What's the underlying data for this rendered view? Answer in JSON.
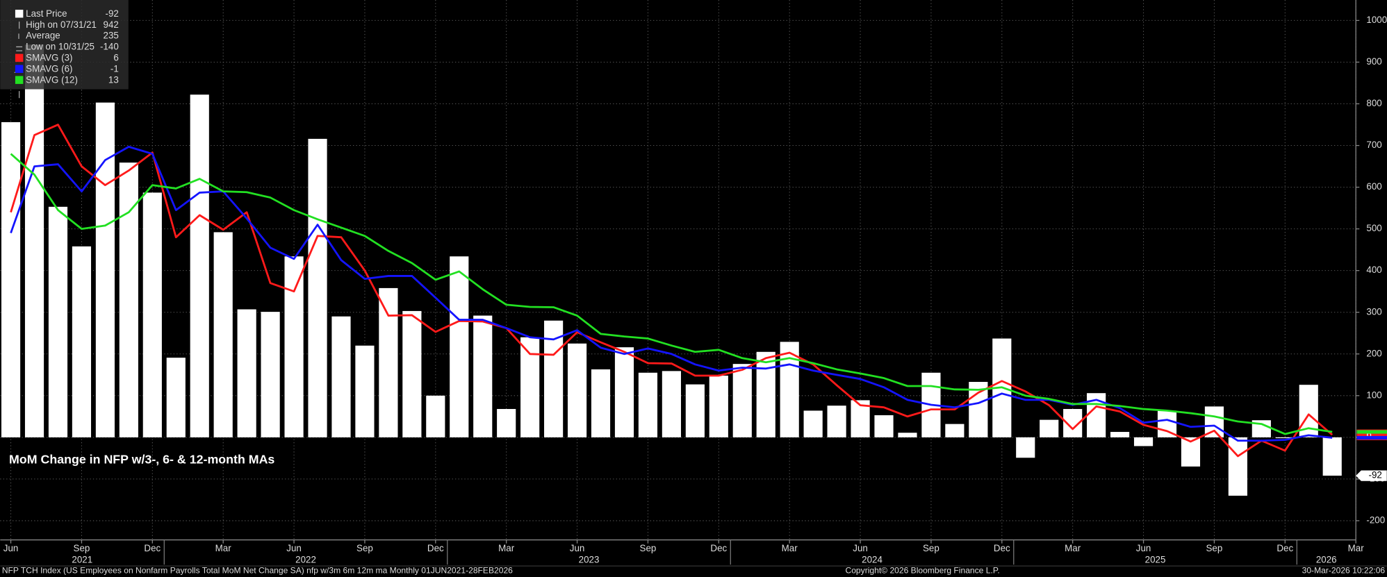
{
  "chart_data": {
    "type": "bar",
    "title": "MoM Change in NFP w/3-, 6- & 12-month MAs",
    "footer_left": "NFP TCH Index (US Employees on Nonfarm Payrolls Total MoM Net Change SA) nfp w/3m 6m 12m ma Monthly 01JUN2021-28FEB2026",
    "footer_center": "Copyright© 2026 Bloomberg Finance L.P.",
    "footer_right": "30-Mar-2026 10:22:06",
    "x": [
      "2021-06",
      "2021-07",
      "2021-08",
      "2021-09",
      "2021-10",
      "2021-11",
      "2021-12",
      "2022-01",
      "2022-02",
      "2022-03",
      "2022-04",
      "2022-05",
      "2022-06",
      "2022-07",
      "2022-08",
      "2022-09",
      "2022-10",
      "2022-11",
      "2022-12",
      "2023-01",
      "2023-02",
      "2023-03",
      "2023-04",
      "2023-05",
      "2023-06",
      "2023-07",
      "2023-08",
      "2023-09",
      "2023-10",
      "2023-11",
      "2023-12",
      "2024-01",
      "2024-02",
      "2024-03",
      "2024-04",
      "2024-05",
      "2024-06",
      "2024-07",
      "2024-08",
      "2024-09",
      "2024-10",
      "2024-11",
      "2024-12",
      "2025-01",
      "2025-02",
      "2025-03",
      "2025-04",
      "2025-05",
      "2025-06",
      "2025-07",
      "2025-08",
      "2025-09",
      "2025-10",
      "2025-11",
      "2025-12",
      "2026-01",
      "2026-02"
    ],
    "xticks": [
      {
        "value": "2021-06",
        "label": "Jun"
      },
      {
        "value": "2021-09",
        "label": "Sep"
      },
      {
        "value": "2021-12",
        "label": "Dec"
      },
      {
        "value": "2022-03",
        "label": "Mar"
      },
      {
        "value": "2022-06",
        "label": "Jun"
      },
      {
        "value": "2022-09",
        "label": "Sep"
      },
      {
        "value": "2022-12",
        "label": "Dec"
      },
      {
        "value": "2023-03",
        "label": "Mar"
      },
      {
        "value": "2023-06",
        "label": "Jun"
      },
      {
        "value": "2023-09",
        "label": "Sep"
      },
      {
        "value": "2023-12",
        "label": "Dec"
      },
      {
        "value": "2024-03",
        "label": "Mar"
      },
      {
        "value": "2024-06",
        "label": "Jun"
      },
      {
        "value": "2024-09",
        "label": "Sep"
      },
      {
        "value": "2024-12",
        "label": "Dec"
      },
      {
        "value": "2025-03",
        "label": "Mar"
      },
      {
        "value": "2025-06",
        "label": "Jun"
      },
      {
        "value": "2025-09",
        "label": "Sep"
      },
      {
        "value": "2025-12",
        "label": "Dec"
      },
      {
        "value": "2026-03",
        "label": "Mar"
      }
    ],
    "year_labels": [
      2021,
      2022,
      2023,
      2024,
      2025,
      2026
    ],
    "ylim": [
      -246,
      1049
    ],
    "yticks": [
      -200,
      -100,
      0,
      100,
      200,
      300,
      400,
      500,
      600,
      700,
      800,
      900,
      1000
    ],
    "grid": true,
    "series": [
      {
        "name": "Last Price",
        "type": "bar",
        "color": "#ffffff",
        "values": [
          756,
          942,
          553,
          458,
          803,
          659,
          587,
          191,
          822,
          492,
          307,
          301,
          434,
          716,
          290,
          220,
          358,
          303,
          100,
          434,
          292,
          68,
          240,
          280,
          225,
          163,
          216,
          155,
          159,
          127,
          148,
          176,
          205,
          229,
          64,
          76,
          89,
          53,
          11,
          155,
          32,
          133,
          237,
          -49,
          42,
          68,
          106,
          13,
          -21,
          64,
          -70,
          74,
          -140,
          41,
          -2,
          126,
          -92
        ]
      },
      {
        "name": "SMAVG (3)",
        "type": "line",
        "color": "#ff1a1a",
        "values": [
          540,
          725,
          750,
          650,
          605,
          640,
          683,
          480,
          533,
          498,
          540,
          370,
          350,
          483,
          480,
          400,
          292,
          293,
          253,
          279,
          278,
          262,
          200,
          198,
          252,
          228,
          205,
          178,
          177,
          148,
          148,
          162,
          190,
          203,
          175,
          125,
          77,
          72,
          50,
          67,
          67,
          107,
          135,
          110,
          77,
          20,
          74,
          62,
          30,
          15,
          -10,
          16,
          -45,
          -8,
          -32,
          55,
          6
        ]
      },
      {
        "name": "SMAVG (6)",
        "type": "line",
        "color": "#1414ff",
        "values": [
          490,
          650,
          655,
          590,
          665,
          697,
          680,
          545,
          587,
          590,
          525,
          455,
          428,
          510,
          425,
          380,
          387,
          387,
          335,
          282,
          282,
          262,
          240,
          235,
          257,
          215,
          200,
          213,
          200,
          175,
          160,
          167,
          165,
          175,
          160,
          150,
          140,
          120,
          90,
          78,
          72,
          82,
          105,
          90,
          90,
          78,
          90,
          70,
          35,
          42,
          25,
          28,
          -8,
          -8,
          -6,
          5,
          -1
        ]
      },
      {
        "name": "SMAVG (12)",
        "type": "line",
        "color": "#22e022",
        "values": [
          680,
          630,
          545,
          500,
          508,
          540,
          605,
          597,
          620,
          590,
          588,
          575,
          545,
          523,
          503,
          483,
          447,
          418,
          378,
          398,
          355,
          318,
          313,
          312,
          292,
          248,
          242,
          237,
          220,
          205,
          210,
          190,
          180,
          190,
          178,
          163,
          153,
          142,
          123,
          123,
          115,
          114,
          120,
          100,
          92,
          80,
          80,
          75,
          68,
          64,
          58,
          50,
          38,
          32,
          8,
          22,
          13
        ]
      }
    ],
    "stats": [
      {
        "label": "High on 07/31/21",
        "value": 942
      },
      {
        "label": "Average",
        "value": 235
      },
      {
        "label": "Low on 10/31/25",
        "value": -140
      }
    ]
  }
}
